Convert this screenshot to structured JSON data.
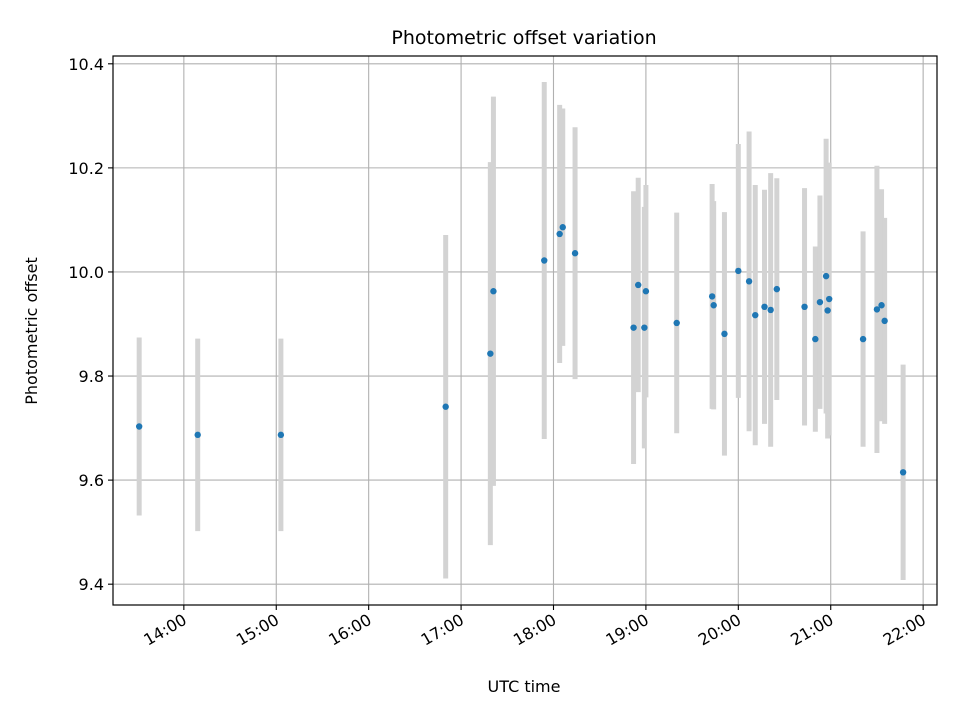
{
  "chart_data": {
    "type": "scatter",
    "title": "Photometric offset variation",
    "xlabel": "UTC time",
    "ylabel": "Photometric offset",
    "ylim": [
      9.36,
      10.415
    ],
    "xlim": [
      "13:14",
      "22:09"
    ],
    "grid": true,
    "colors": {
      "points": "#1f77b4",
      "errorbars": "#d3d3d3",
      "grid": "#b0b0b0"
    },
    "x_ticks": [
      "14:00",
      "15:00",
      "16:00",
      "17:00",
      "18:00",
      "19:00",
      "20:00",
      "21:00",
      "22:00"
    ],
    "y_ticks": [
      "9.4",
      "9.6",
      "9.8",
      "10.0",
      "10.2",
      "10.4"
    ],
    "points": [
      {
        "x": "13:31",
        "y": 9.703,
        "err": 0.171
      },
      {
        "x": "14:09",
        "y": 9.687,
        "err": 0.185
      },
      {
        "x": "15:03",
        "y": 9.687,
        "err": 0.185
      },
      {
        "x": "16:50",
        "y": 9.741,
        "err": 0.33
      },
      {
        "x": "17:19",
        "y": 9.843,
        "err": 0.368
      },
      {
        "x": "17:21",
        "y": 9.963,
        "err": 0.374
      },
      {
        "x": "17:54",
        "y": 10.022,
        "err": 0.343
      },
      {
        "x": "18:04",
        "y": 10.073,
        "err": 0.248
      },
      {
        "x": "18:06",
        "y": 10.086,
        "err": 0.228
      },
      {
        "x": "18:14",
        "y": 10.036,
        "err": 0.242
      },
      {
        "x": "18:52",
        "y": 9.893,
        "err": 0.262
      },
      {
        "x": "18:55",
        "y": 9.975,
        "err": 0.206
      },
      {
        "x": "18:59",
        "y": 9.893,
        "err": 0.232
      },
      {
        "x": "19:00",
        "y": 9.963,
        "err": 0.204
      },
      {
        "x": "19:20",
        "y": 9.902,
        "err": 0.212
      },
      {
        "x": "19:43",
        "y": 9.953,
        "err": 0.216
      },
      {
        "x": "19:44",
        "y": 9.936,
        "err": 0.2
      },
      {
        "x": "19:51",
        "y": 9.881,
        "err": 0.234
      },
      {
        "x": "20:00",
        "y": 10.002,
        "err": 0.244
      },
      {
        "x": "20:07",
        "y": 9.982,
        "err": 0.288
      },
      {
        "x": "20:11",
        "y": 9.917,
        "err": 0.25
      },
      {
        "x": "20:17",
        "y": 9.933,
        "err": 0.225
      },
      {
        "x": "20:21",
        "y": 9.927,
        "err": 0.263
      },
      {
        "x": "20:25",
        "y": 9.967,
        "err": 0.213
      },
      {
        "x": "20:43",
        "y": 9.933,
        "err": 0.228
      },
      {
        "x": "20:50",
        "y": 9.871,
        "err": 0.178
      },
      {
        "x": "20:53",
        "y": 9.942,
        "err": 0.205
      },
      {
        "x": "20:57",
        "y": 9.992,
        "err": 0.264
      },
      {
        "x": "20:58",
        "y": 9.926,
        "err": 0.246
      },
      {
        "x": "20:59",
        "y": 9.948,
        "err": 0.262
      },
      {
        "x": "21:21",
        "y": 9.871,
        "err": 0.207
      },
      {
        "x": "21:30",
        "y": 9.928,
        "err": 0.276
      },
      {
        "x": "21:33",
        "y": 9.936,
        "err": 0.223
      },
      {
        "x": "21:35",
        "y": 9.906,
        "err": 0.198
      },
      {
        "x": "21:47",
        "y": 9.615,
        "err": 0.207
      }
    ]
  }
}
